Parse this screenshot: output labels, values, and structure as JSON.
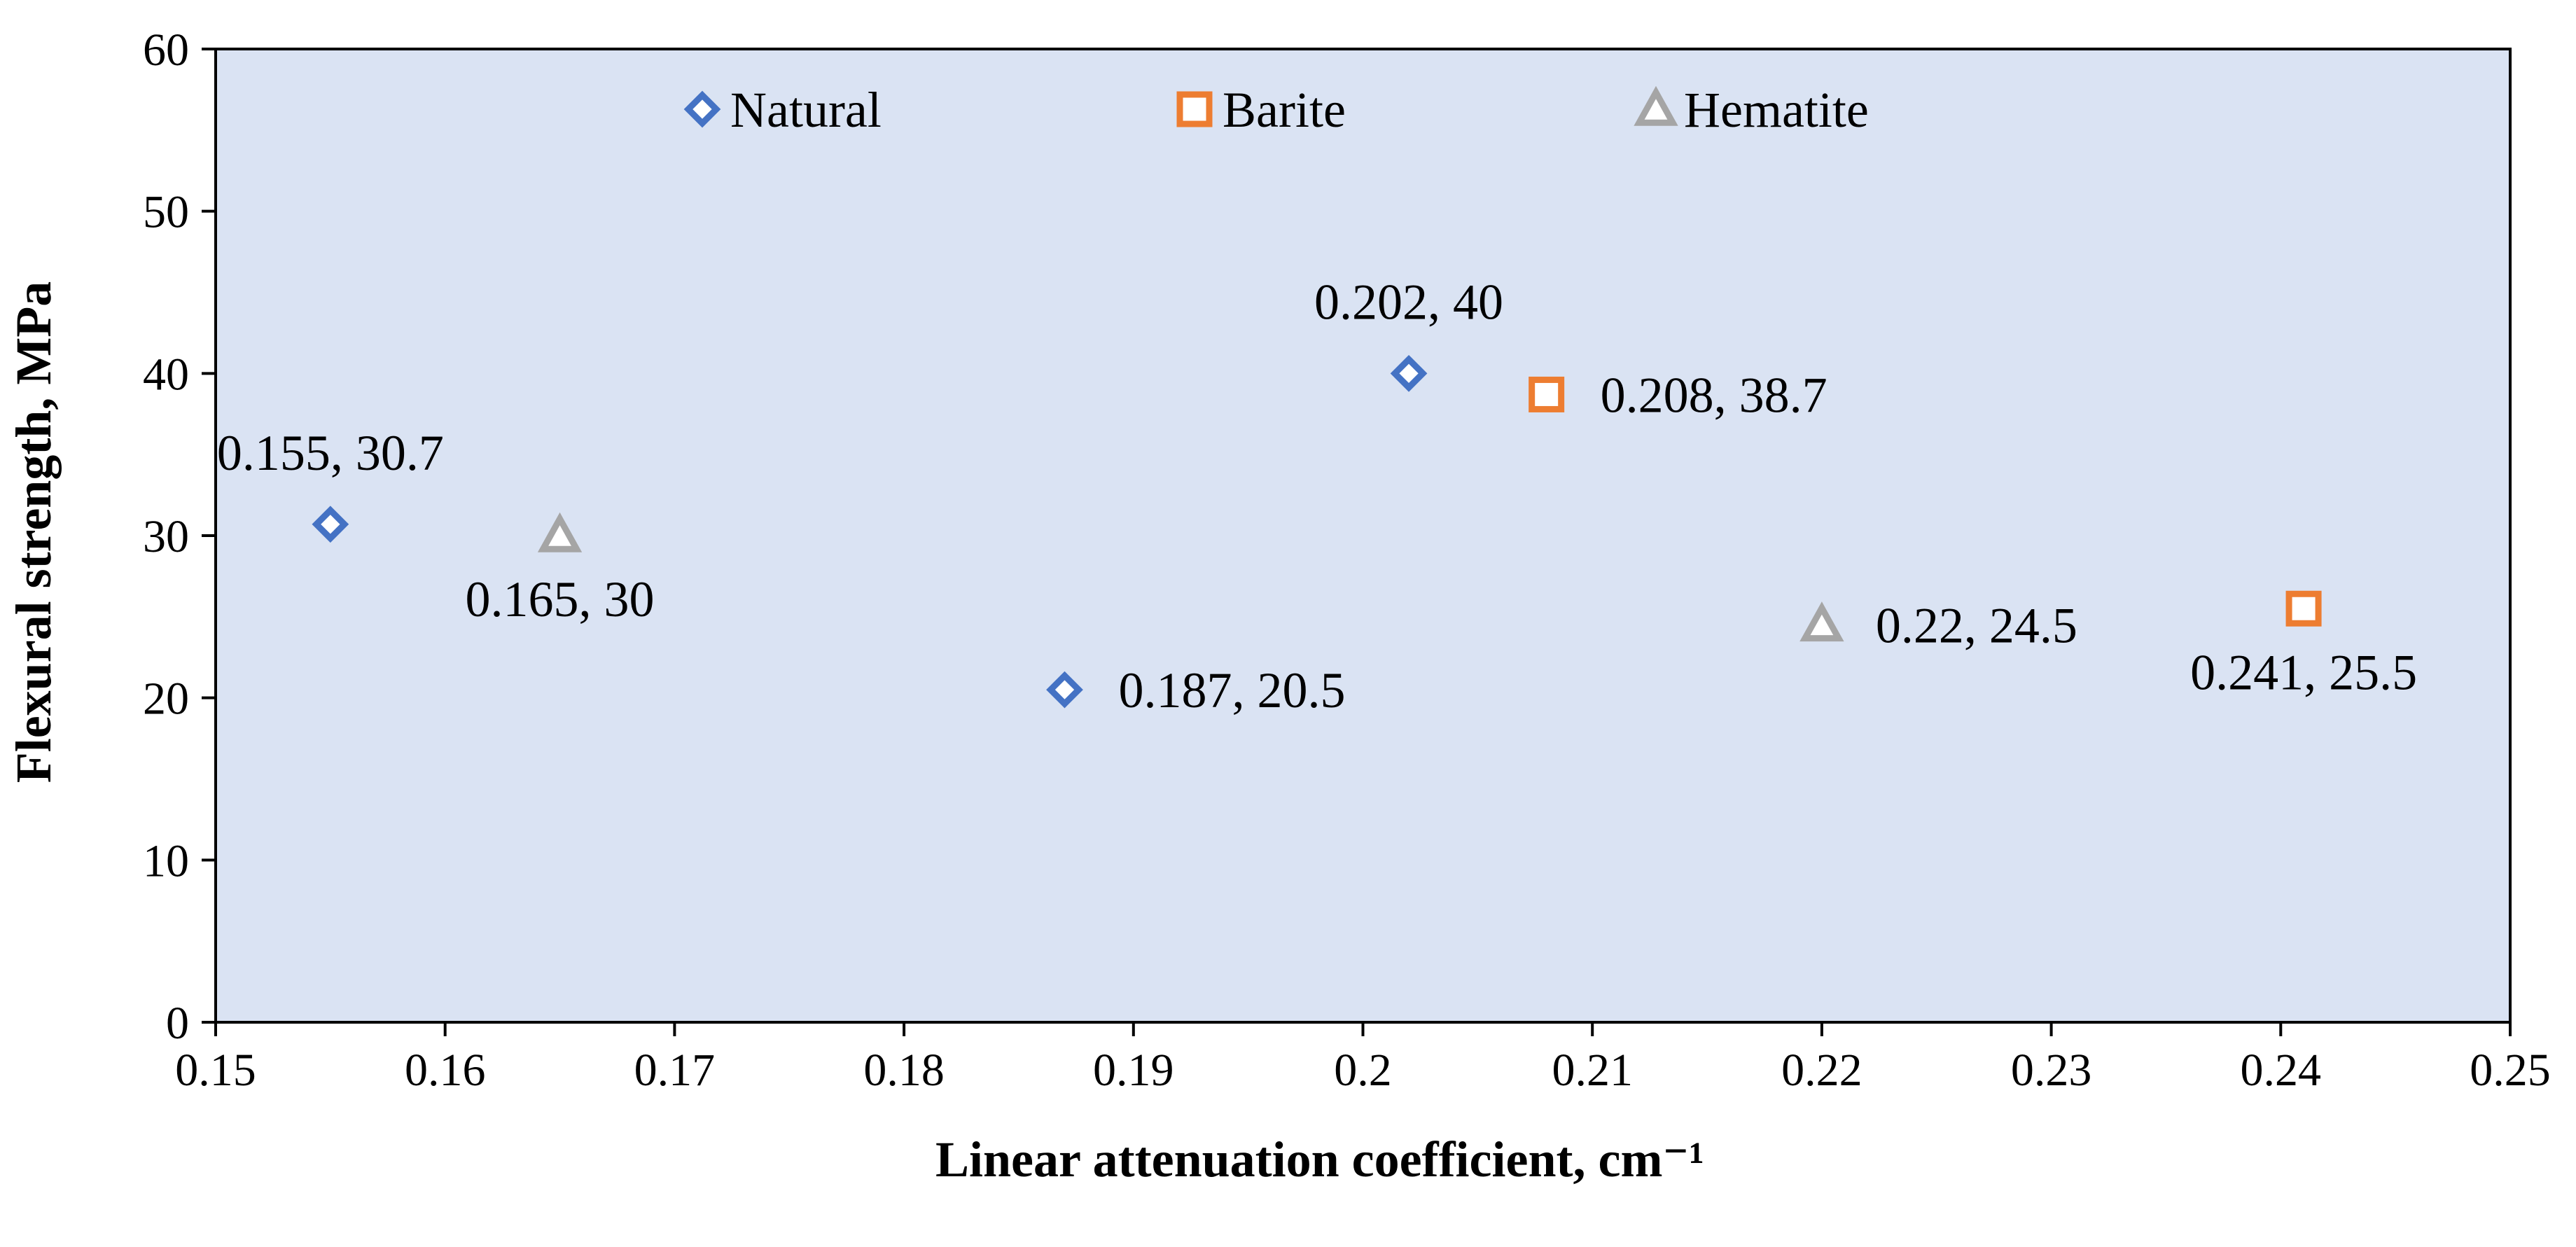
{
  "chart_data": {
    "type": "scatter",
    "title": "",
    "xlabel": "Linear attenuation coefficient, cm⁻¹",
    "ylabel": "Flexural strength, MPa",
    "xlim": [
      0.15,
      0.25
    ],
    "ylim": [
      0,
      60
    ],
    "x_ticks": [
      0.15,
      0.16,
      0.17,
      0.18,
      0.19,
      0.2,
      0.21,
      0.22,
      0.23,
      0.24,
      0.25
    ],
    "x_tick_labels": [
      "0.15",
      "0.16",
      "0.17",
      "0.18",
      "0.19",
      "0.2",
      "0.21",
      "0.22",
      "0.23",
      "0.24",
      "0.25"
    ],
    "y_ticks": [
      0,
      10,
      20,
      30,
      40,
      50,
      60
    ],
    "y_tick_labels": [
      "0",
      "10",
      "20",
      "30",
      "40",
      "50",
      "60"
    ],
    "grid": false,
    "legend_position": "top",
    "plot_background": "#dae3f3",
    "series": [
      {
        "name": "Natural",
        "marker": "diamond",
        "color": "#4472c4",
        "points": [
          {
            "x": 0.155,
            "y": 30.7,
            "label": "0.155, 30.7",
            "label_pos": "above"
          },
          {
            "x": 0.187,
            "y": 20.5,
            "label": "0.187, 20.5",
            "label_pos": "right"
          },
          {
            "x": 0.202,
            "y": 40,
            "label": "0.202, 40",
            "label_pos": "above"
          }
        ]
      },
      {
        "name": "Barite",
        "marker": "square",
        "color": "#ed7d31",
        "points": [
          {
            "x": 0.208,
            "y": 38.7,
            "label": "0.208, 38.7",
            "label_pos": "right"
          },
          {
            "x": 0.241,
            "y": 25.5,
            "label": "0.241, 25.5",
            "label_pos": "below"
          }
        ]
      },
      {
        "name": "Hematite",
        "marker": "triangle",
        "color": "#a5a5a5",
        "points": [
          {
            "x": 0.165,
            "y": 30,
            "label": "0.165, 30",
            "label_pos": "below"
          },
          {
            "x": 0.22,
            "y": 24.5,
            "label": "0.22, 24.5",
            "label_pos": "right"
          }
        ]
      }
    ]
  }
}
